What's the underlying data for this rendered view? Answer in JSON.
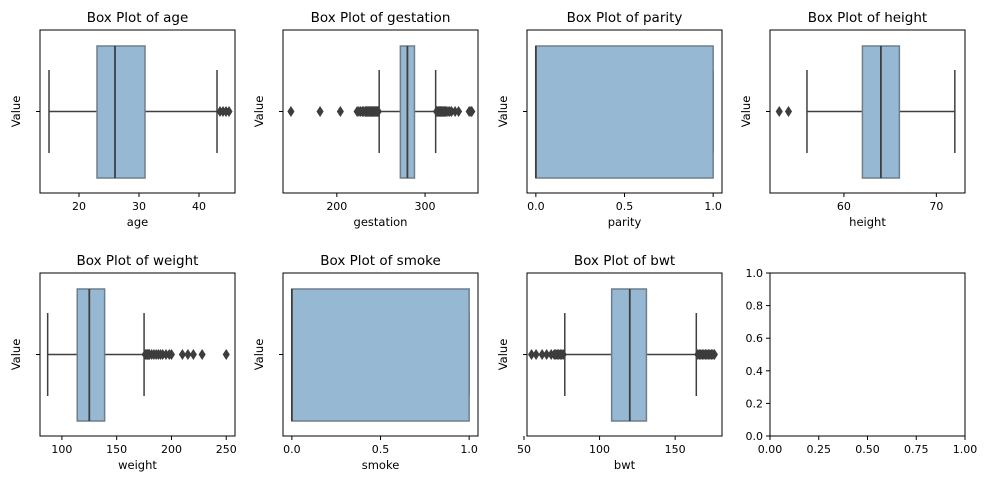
{
  "figure": {
    "box_fill": "#97b8d2",
    "box_edge": "#3f3f3f",
    "y_label": "Value"
  },
  "chart_data": [
    {
      "type": "box",
      "title": "Box Plot of age",
      "xlabel": "age",
      "ylabel": "Value",
      "xlim": [
        13.5,
        46.0
      ],
      "xticks": [
        20,
        30,
        40
      ],
      "box": {
        "whisker_low": 15,
        "q1": 23,
        "median": 26,
        "q3": 31,
        "whisker_high": 43
      },
      "outliers": [
        43.5,
        44,
        44.5,
        45
      ]
    },
    {
      "type": "box",
      "title": "Box Plot of gestation",
      "xlabel": "gestation",
      "ylabel": "Value",
      "xlim": [
        139,
        360
      ],
      "xticks": [
        200,
        300
      ],
      "box": {
        "whisker_low": 248,
        "q1": 272,
        "median": 280,
        "q3": 288,
        "whisker_high": 312
      },
      "outliers": [
        148,
        181,
        204,
        223,
        225,
        227,
        229,
        230,
        232,
        233,
        234,
        235,
        236,
        237,
        238,
        239,
        240,
        241,
        242,
        243,
        244,
        245,
        246,
        247,
        313,
        314,
        315,
        316,
        317,
        318,
        319,
        320,
        321,
        322,
        323,
        324,
        326,
        328,
        330,
        334,
        338,
        350,
        352,
        353
      ]
    },
    {
      "type": "box",
      "title": "Box Plot of parity",
      "xlabel": "parity",
      "ylabel": "Value",
      "xlim": [
        -0.05,
        1.05
      ],
      "xticks": [
        0.0,
        0.5,
        1.0
      ],
      "xtick_labels": [
        "0.0",
        "0.5",
        "1.0"
      ],
      "box": {
        "whisker_low": 0,
        "q1": 0,
        "median": 0,
        "q3": 1,
        "whisker_high": 1
      },
      "outliers": []
    },
    {
      "type": "box",
      "title": "Box Plot of height",
      "xlabel": "height",
      "ylabel": "Value",
      "xlim": [
        52,
        73.1
      ],
      "xticks": [
        60,
        70
      ],
      "box": {
        "whisker_low": 56,
        "q1": 62,
        "median": 64,
        "q3": 66,
        "whisker_high": 72
      },
      "outliers": [
        53,
        54
      ]
    },
    {
      "type": "box",
      "title": "Box Plot of weight",
      "xlabel": "weight",
      "ylabel": "Value",
      "xlim": [
        80,
        258
      ],
      "xticks": [
        100,
        150,
        200,
        250
      ],
      "box": {
        "whisker_low": 87,
        "q1": 114,
        "median": 125,
        "q3": 139,
        "whisker_high": 175
      },
      "outliers": [
        176,
        177,
        178,
        179,
        180,
        182,
        184,
        186,
        188,
        190,
        192,
        195,
        198,
        200,
        210,
        215,
        220,
        228,
        250
      ]
    },
    {
      "type": "box",
      "title": "Box Plot of smoke",
      "xlabel": "smoke",
      "ylabel": "Value",
      "xlim": [
        -0.05,
        1.05
      ],
      "xticks": [
        0.0,
        0.5,
        1.0
      ],
      "xtick_labels": [
        "0.0",
        "0.5",
        "1.0"
      ],
      "box": {
        "whisker_low": 0,
        "q1": 0,
        "median": 0,
        "q3": 1,
        "whisker_high": 1
      },
      "outliers": []
    },
    {
      "type": "box",
      "title": "Box Plot of bwt",
      "xlabel": "bwt",
      "ylabel": "Value",
      "xlim": [
        52,
        181
      ],
      "xticks": [
        50,
        100,
        150
      ],
      "box": {
        "whisker_low": 77,
        "q1": 108,
        "median": 120,
        "q3": 131,
        "whisker_high": 164
      },
      "outliers": [
        55,
        58,
        62,
        65,
        68,
        70,
        71,
        72,
        73,
        74,
        75,
        76,
        165,
        166,
        167,
        168,
        169,
        170,
        171,
        172,
        173,
        174,
        175,
        176
      ]
    },
    {
      "type": "empty",
      "title": "",
      "xlabel": "",
      "ylabel": "",
      "xlim": [
        0,
        1
      ],
      "ylim": [
        0,
        1
      ],
      "xticks": [
        0.0,
        0.25,
        0.5,
        0.75,
        1.0
      ],
      "xtick_labels": [
        "0.00",
        "0.25",
        "0.50",
        "0.75",
        "1.00"
      ],
      "yticks": [
        0.0,
        0.2,
        0.4,
        0.6,
        0.8,
        1.0
      ],
      "ytick_labels": [
        "0.0",
        "0.2",
        "0.4",
        "0.6",
        "0.8",
        "1.0"
      ]
    }
  ]
}
